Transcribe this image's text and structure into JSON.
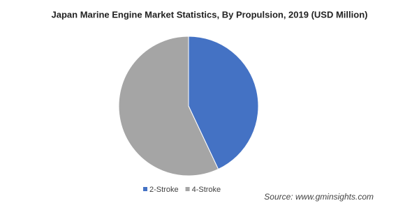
{
  "chart_data": {
    "type": "pie",
    "title": "Japan Marine Engine Market Statistics, By Propulsion, 2019 (USD Million)",
    "categories": [
      "2-Stroke",
      "4-Stroke"
    ],
    "values": [
      43,
      57
    ],
    "colors": [
      "#4472c4",
      "#a5a5a5"
    ],
    "legend": "bottom"
  },
  "source": "Source: www.gminsights.com"
}
